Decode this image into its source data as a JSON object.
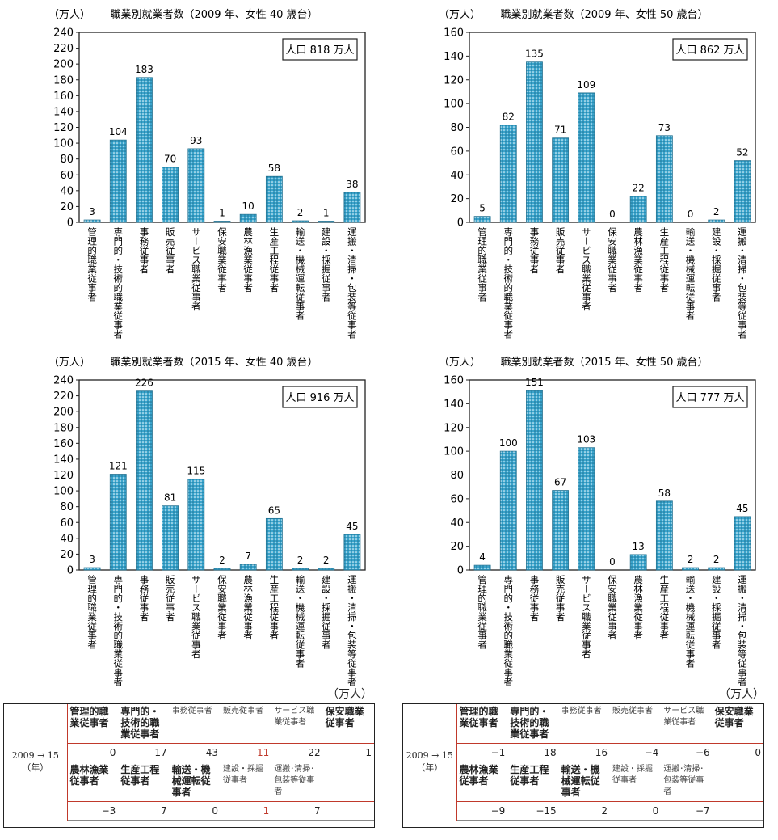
{
  "categories": [
    "管理的職業従事者",
    "専門的・技術的職業従事者",
    "事務従事者",
    "販売従事者",
    "サービス職業従事者",
    "保安職業従事者",
    "農林漁業従事者",
    "生産工程従事者",
    "輸送・機械運転従事者",
    "建設・採掘従事者",
    "運搬・清掃・包装等従事者"
  ],
  "chart_data": [
    {
      "type": "bar",
      "title": "職業別就業者数（2009 年、女性 40 歳台）",
      "ylabel": "（万人）",
      "population": "人口 818 万人",
      "categories": [
        "管理的職業従事者",
        "専門的・技術的職業従事者",
        "事務従事者",
        "販売従事者",
        "サービス職業従事者",
        "保安職業従事者",
        "農林漁業従事者",
        "生産工程従事者",
        "輸送・機械運転従事者",
        "建設・採掘従事者",
        "運搬・清掃・包装等従事者"
      ],
      "values": [
        3,
        104,
        183,
        70,
        93,
        1,
        10,
        58,
        2,
        1,
        38
      ],
      "ylim": [
        0,
        240
      ],
      "ystep": 20
    },
    {
      "type": "bar",
      "title": "職業別就業者数（2009 年、女性 50 歳台）",
      "ylabel": "（万人）",
      "population": "人口 862 万人",
      "categories": [
        "管理的職業従事者",
        "専門的・技術的職業従事者",
        "事務従事者",
        "販売従事者",
        "サービス職業従事者",
        "保安職業従事者",
        "農林漁業従事者",
        "生産工程従事者",
        "輸送・機械運転従事者",
        "建設・採掘従事者",
        "運搬・清掃・包装等従事者"
      ],
      "values": [
        5,
        82,
        135,
        71,
        109,
        0,
        22,
        73,
        0,
        2,
        52
      ],
      "ylim": [
        0,
        160
      ],
      "ystep": 20
    },
    {
      "type": "bar",
      "title": "職業別就業者数（2015 年、女性 40 歳台）",
      "ylabel": "（万人）",
      "population": "人口 916 万人",
      "categories": [
        "管理的職業従事者",
        "専門的・技術的職業従事者",
        "事務従事者",
        "販売従事者",
        "サービス職業従事者",
        "保安職業従事者",
        "農林漁業従事者",
        "生産工程従事者",
        "輸送・機械運転従事者",
        "建設・採掘従事者",
        "運搬・清掃・包装等従事者"
      ],
      "values": [
        3,
        121,
        226,
        81,
        115,
        2,
        7,
        65,
        2,
        2,
        45
      ],
      "ylim": [
        0,
        240
      ],
      "ystep": 20
    },
    {
      "type": "bar",
      "title": "職業別就業者数（2015 年、女性 50 歳台）",
      "ylabel": "（万人）",
      "population": "人口 777 万人",
      "categories": [
        "管理的職業従事者",
        "専門的・技術的職業従事者",
        "事務従事者",
        "販売従事者",
        "サービス職業従事者",
        "保安職業従事者",
        "農林漁業従事者",
        "生産工程従事者",
        "輸送・機械運転従事者",
        "建設・採掘従事者",
        "運搬・清掃・包装等従事者"
      ],
      "values": [
        4,
        100,
        151,
        67,
        103,
        0,
        13,
        58,
        2,
        2,
        45
      ],
      "ylim": [
        0,
        160
      ],
      "ystep": 20
    }
  ],
  "tables": [
    {
      "unit": "（万人）",
      "year_label": "2009 → 15",
      "year_unit": "（年）",
      "row1_labels": [
        "管理的職業従事者",
        "専門的・技術的職業従事者",
        "事務従事者",
        "販売従事者",
        "サービス職業従事者",
        "保安職業従事者"
      ],
      "row1_values": [
        "0",
        "17",
        "43",
        "11",
        "22",
        "1"
      ],
      "row2_labels": [
        "農林漁業従事者",
        "生産工程従事者",
        "輸送・機械運転従事者",
        "建設・採掘従事者",
        "運搬･清掃･包装等従事者"
      ],
      "row2_values": [
        "−3",
        "7",
        "0",
        "1",
        "7"
      ]
    },
    {
      "unit": "（万人）",
      "year_label": "2009 → 15",
      "year_unit": "（年）",
      "row1_labels": [
        "管理的職業従事者",
        "専門的・技術的職業従事者",
        "事務従事者",
        "販売従事者",
        "サービス職業従事者",
        "保安職業従事者"
      ],
      "row1_values": [
        "−1",
        "18",
        "16",
        "−4",
        "−6",
        "0"
      ],
      "row2_labels": [
        "農林漁業従事者",
        "生産工程従事者",
        "輸送・機械運転従事者",
        "建設・採掘従事者",
        "運搬･清掃･包装等従事者"
      ],
      "row2_values": [
        "−9",
        "−15",
        "2",
        "0",
        "−7"
      ]
    }
  ],
  "colors": {
    "bar": "#3aa4cc",
    "bar_dark": "#1f6f8f",
    "axis": "#222222",
    "accent": "#c0392b"
  }
}
